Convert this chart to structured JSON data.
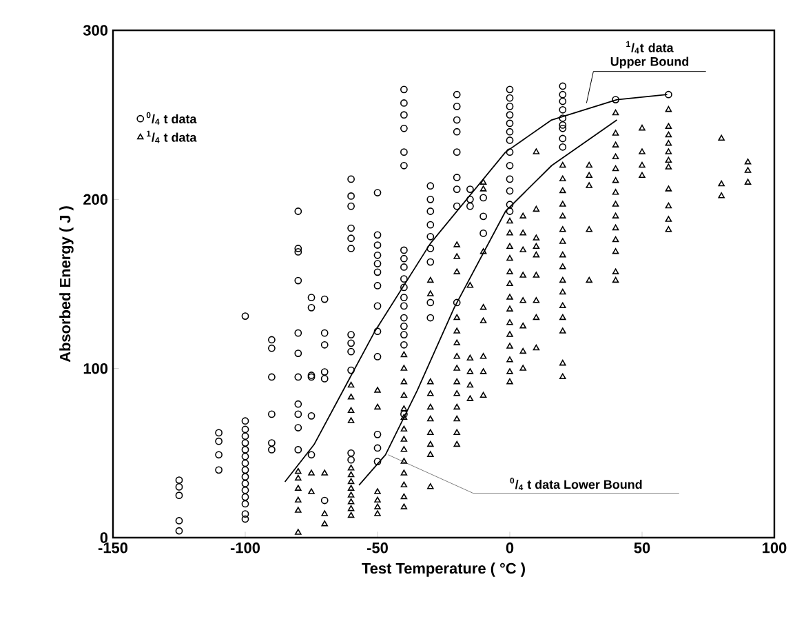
{
  "chart_data": {
    "type": "scatter",
    "xlabel": "Test    Temperature    ( °C )",
    "ylabel": "Absorbed    Energy    ( J )",
    "xlim": [
      -150,
      100
    ],
    "ylim": [
      0,
      300
    ],
    "xticks": [
      -150,
      -100,
      -50,
      0,
      50,
      100
    ],
    "yticks": [
      0,
      100,
      200,
      300
    ],
    "legend": "top left",
    "series": [
      {
        "name": "$^{0}$/$_{4}$ t data",
        "marker": "circle",
        "color": "#000000",
        "x": [
          -125,
          -125,
          -125,
          -125,
          -125,
          -110,
          -110,
          -110,
          -110,
          -100,
          -100,
          -100,
          -100,
          -100,
          -100,
          -100,
          -100,
          -100,
          -100,
          -100,
          -100,
          -100,
          -100,
          -100,
          -100,
          -90,
          -90,
          -90,
          -90,
          -90,
          -90,
          -80,
          -80,
          -80,
          -80,
          -80,
          -80,
          -80,
          -80,
          -80,
          -80,
          -80,
          -75,
          -75,
          -75,
          -75,
          -75,
          -75,
          -70,
          -70,
          -70,
          -70,
          -70,
          -70,
          -60,
          -60,
          -60,
          -60,
          -60,
          -60,
          -60,
          -60,
          -60,
          -60,
          -60,
          -60,
          -50,
          -50,
          -50,
          -50,
          -50,
          -50,
          -50,
          -50,
          -50,
          -50,
          -50,
          -50,
          -50,
          -40,
          -40,
          -40,
          -40,
          -40,
          -40,
          -40,
          -40,
          -40,
          -40,
          -40,
          -40,
          -40,
          -40,
          -40,
          -40,
          -40,
          -40,
          -30,
          -30,
          -30,
          -30,
          -30,
          -30,
          -30,
          -30,
          -30,
          -20,
          -20,
          -20,
          -20,
          -20,
          -20,
          -20,
          -20,
          -20,
          -15,
          -15,
          -15,
          -10,
          -10,
          -10,
          0,
          0,
          0,
          0,
          0,
          0,
          0,
          0,
          0,
          0,
          0,
          0,
          0,
          20,
          20,
          20,
          20,
          20,
          20,
          20,
          20,
          20,
          40,
          60
        ],
        "values": [
          34,
          30,
          25,
          10,
          4,
          62,
          57,
          49,
          40,
          131,
          69,
          64,
          60,
          56,
          52,
          48,
          44,
          40,
          36,
          32,
          28,
          24,
          20,
          14,
          11,
          117,
          112,
          95,
          73,
          56,
          52,
          193,
          171,
          169,
          152,
          121,
          109,
          95,
          79,
          73,
          65,
          52,
          142,
          136,
          96,
          95,
          72,
          49,
          141,
          121,
          114,
          98,
          94,
          22,
          212,
          202,
          196,
          183,
          177,
          171,
          120,
          115,
          110,
          99,
          50,
          46,
          204,
          179,
          173,
          167,
          162,
          157,
          149,
          137,
          122,
          107,
          61,
          53,
          45,
          265,
          257,
          250,
          242,
          228,
          220,
          170,
          165,
          160,
          153,
          148,
          142,
          137,
          130,
          125,
          120,
          114,
          73,
          208,
          200,
          193,
          185,
          178,
          171,
          163,
          139,
          130,
          262,
          255,
          247,
          240,
          228,
          213,
          206,
          196,
          139,
          206,
          200,
          196,
          201,
          190,
          180,
          265,
          260,
          255,
          250,
          245,
          240,
          235,
          228,
          220,
          212,
          205,
          197,
          193,
          267,
          262,
          258,
          253,
          248,
          244,
          242,
          236,
          231,
          259,
          262
        ]
      },
      {
        "name": "$^{1}$/$_{4}$ t data",
        "marker": "triangle",
        "color": "#000000",
        "x": [
          -80,
          -80,
          -80,
          -80,
          -80,
          -80,
          -75,
          -75,
          -70,
          -70,
          -70,
          -60,
          -60,
          -60,
          -60,
          -60,
          -60,
          -60,
          -60,
          -60,
          -60,
          -60,
          -60,
          -50,
          -50,
          -50,
          -50,
          -50,
          -50,
          -40,
          -40,
          -40,
          -40,
          -40,
          -40,
          -40,
          -40,
          -40,
          -40,
          -40,
          -40,
          -40,
          -40,
          -30,
          -30,
          -30,
          -30,
          -30,
          -30,
          -30,
          -30,
          -30,
          -30,
          -20,
          -20,
          -20,
          -20,
          -20,
          -20,
          -20,
          -20,
          -20,
          -20,
          -20,
          -20,
          -20,
          -20,
          -15,
          -15,
          -15,
          -15,
          -15,
          -10,
          -10,
          -10,
          -10,
          -10,
          -10,
          -10,
          -10,
          0,
          0,
          0,
          0,
          0,
          0,
          0,
          0,
          0,
          0,
          0,
          0,
          0,
          0,
          5,
          5,
          5,
          5,
          5,
          5,
          5,
          5,
          10,
          10,
          10,
          10,
          10,
          10,
          10,
          10,
          10,
          20,
          20,
          20,
          20,
          20,
          20,
          20,
          20,
          20,
          20,
          20,
          20,
          20,
          20,
          20,
          20,
          30,
          30,
          30,
          30,
          30,
          40,
          40,
          40,
          40,
          40,
          40,
          40,
          40,
          40,
          40,
          40,
          40,
          40,
          40,
          50,
          50,
          50,
          50,
          60,
          60,
          60,
          60,
          60,
          60,
          60,
          60,
          60,
          60,
          60,
          80,
          80,
          80,
          90,
          90,
          90
        ],
        "values": [
          39,
          35,
          29,
          22,
          16,
          3,
          38,
          27,
          38,
          14,
          8,
          90,
          83,
          75,
          69,
          41,
          37,
          33,
          29,
          25,
          21,
          17,
          13,
          87,
          77,
          27,
          22,
          18,
          14,
          108,
          100,
          92,
          84,
          76,
          71,
          64,
          58,
          52,
          45,
          38,
          31,
          24,
          18,
          152,
          144,
          92,
          85,
          77,
          70,
          62,
          55,
          49,
          30,
          173,
          166,
          157,
          130,
          122,
          115,
          107,
          100,
          92,
          85,
          77,
          70,
          62,
          55,
          149,
          106,
          98,
          90,
          82,
          210,
          206,
          169,
          136,
          128,
          107,
          98,
          84,
          187,
          180,
          172,
          165,
          157,
          150,
          142,
          135,
          127,
          120,
          113,
          105,
          98,
          92,
          190,
          180,
          170,
          155,
          140,
          125,
          110,
          100,
          228,
          194,
          177,
          172,
          167,
          155,
          140,
          130,
          112,
          220,
          212,
          205,
          197,
          190,
          182,
          175,
          167,
          160,
          152,
          145,
          137,
          130,
          122,
          103,
          95,
          220,
          214,
          208,
          182,
          152,
          251,
          239,
          232,
          225,
          218,
          211,
          204,
          197,
          190,
          183,
          176,
          169,
          157,
          152,
          242,
          228,
          220,
          214,
          253,
          243,
          238,
          233,
          228,
          223,
          219,
          206,
          196,
          188,
          182,
          236,
          209,
          202,
          222,
          217,
          210
        ]
      },
      {
        "type": "line",
        "color": "#000000",
        "x": [
          -85,
          -74,
          -51,
          -30,
          -1.6,
          15.8,
          40.5,
          59.5
        ],
        "values": [
          33,
          55,
          122,
          174,
          228,
          247,
          259,
          262
        ]
      },
      {
        "type": "line",
        "color": "#000000",
        "x": [
          -57,
          -47,
          -35,
          -21,
          -1.6,
          15.8,
          40.5
        ],
        "values": [
          31,
          49,
          87,
          136,
          193,
          220,
          247
        ]
      }
    ],
    "annotations": [
      {
        "text": "$^{1}$/$_{4}$t data Upper Bound",
        "x": 29,
        "y": 257
      },
      {
        "text": "$^{0}$/$_{4}$ t data   Lower Bound",
        "x": -46,
        "y": 49
      }
    ]
  }
}
